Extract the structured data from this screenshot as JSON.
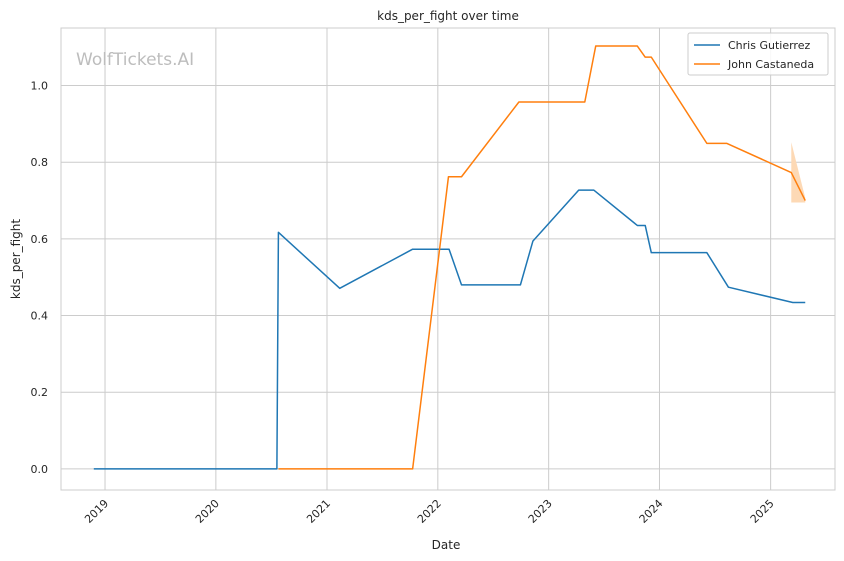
{
  "watermark": "WolfTickets.AI",
  "chart_data": {
    "type": "line",
    "title": "kds_per_fight over time",
    "xlabel": "Date",
    "ylabel": "kds_per_fight",
    "x_ticks": [
      "2019",
      "2020",
      "2021",
      "2022",
      "2023",
      "2024",
      "2025"
    ],
    "y_ticks": [
      "0.0",
      "0.2",
      "0.4",
      "0.6",
      "0.8",
      "1.0"
    ],
    "xlim": [
      "2018-08-09",
      "2025-08-01"
    ],
    "ylim": [
      -0.055,
      1.15
    ],
    "grid": true,
    "legend_position": "top-right",
    "series": [
      {
        "name": "Chris Gutierrez",
        "color": "#1f77b4",
        "points": [
          [
            "2018-11-25",
            0.0
          ],
          [
            "2020-07-20",
            0.0
          ],
          [
            "2020-07-25",
            0.617
          ],
          [
            "2021-02-12",
            0.471
          ],
          [
            "2021-10-10",
            0.573
          ],
          [
            "2022-02-07",
            0.573
          ],
          [
            "2022-03-20",
            0.48
          ],
          [
            "2022-09-30",
            0.48
          ],
          [
            "2022-11-10",
            0.594
          ],
          [
            "2023-04-10",
            0.727
          ],
          [
            "2023-05-30",
            0.727
          ],
          [
            "2023-10-20",
            0.635
          ],
          [
            "2023-11-15",
            0.635
          ],
          [
            "2023-12-05",
            0.564
          ],
          [
            "2024-06-05",
            0.564
          ],
          [
            "2024-08-15",
            0.474
          ],
          [
            "2025-03-15",
            0.434
          ],
          [
            "2025-04-25",
            0.434
          ]
        ]
      },
      {
        "name": "John Castaneda",
        "color": "#ff7f0e",
        "band_color": "#fdd9b5",
        "points": [
          [
            "2020-07-25",
            0.0
          ],
          [
            "2021-10-10",
            0.0
          ],
          [
            "2022-02-05",
            0.762
          ],
          [
            "2022-03-20",
            0.762
          ],
          [
            "2022-09-25",
            0.957
          ],
          [
            "2023-04-30",
            0.957
          ],
          [
            "2023-06-05",
            1.103
          ],
          [
            "2023-10-20",
            1.103
          ],
          [
            "2023-11-15",
            1.074
          ],
          [
            "2023-12-05",
            1.074
          ],
          [
            "2024-06-05",
            0.849
          ],
          [
            "2024-08-10",
            0.849
          ],
          [
            "2025-03-10",
            0.773
          ],
          [
            "2025-04-25",
            0.7
          ]
        ],
        "band": [
          [
            "2025-03-10",
            0.695,
            0.852
          ],
          [
            "2025-04-25",
            0.695,
            0.707
          ]
        ]
      }
    ]
  }
}
